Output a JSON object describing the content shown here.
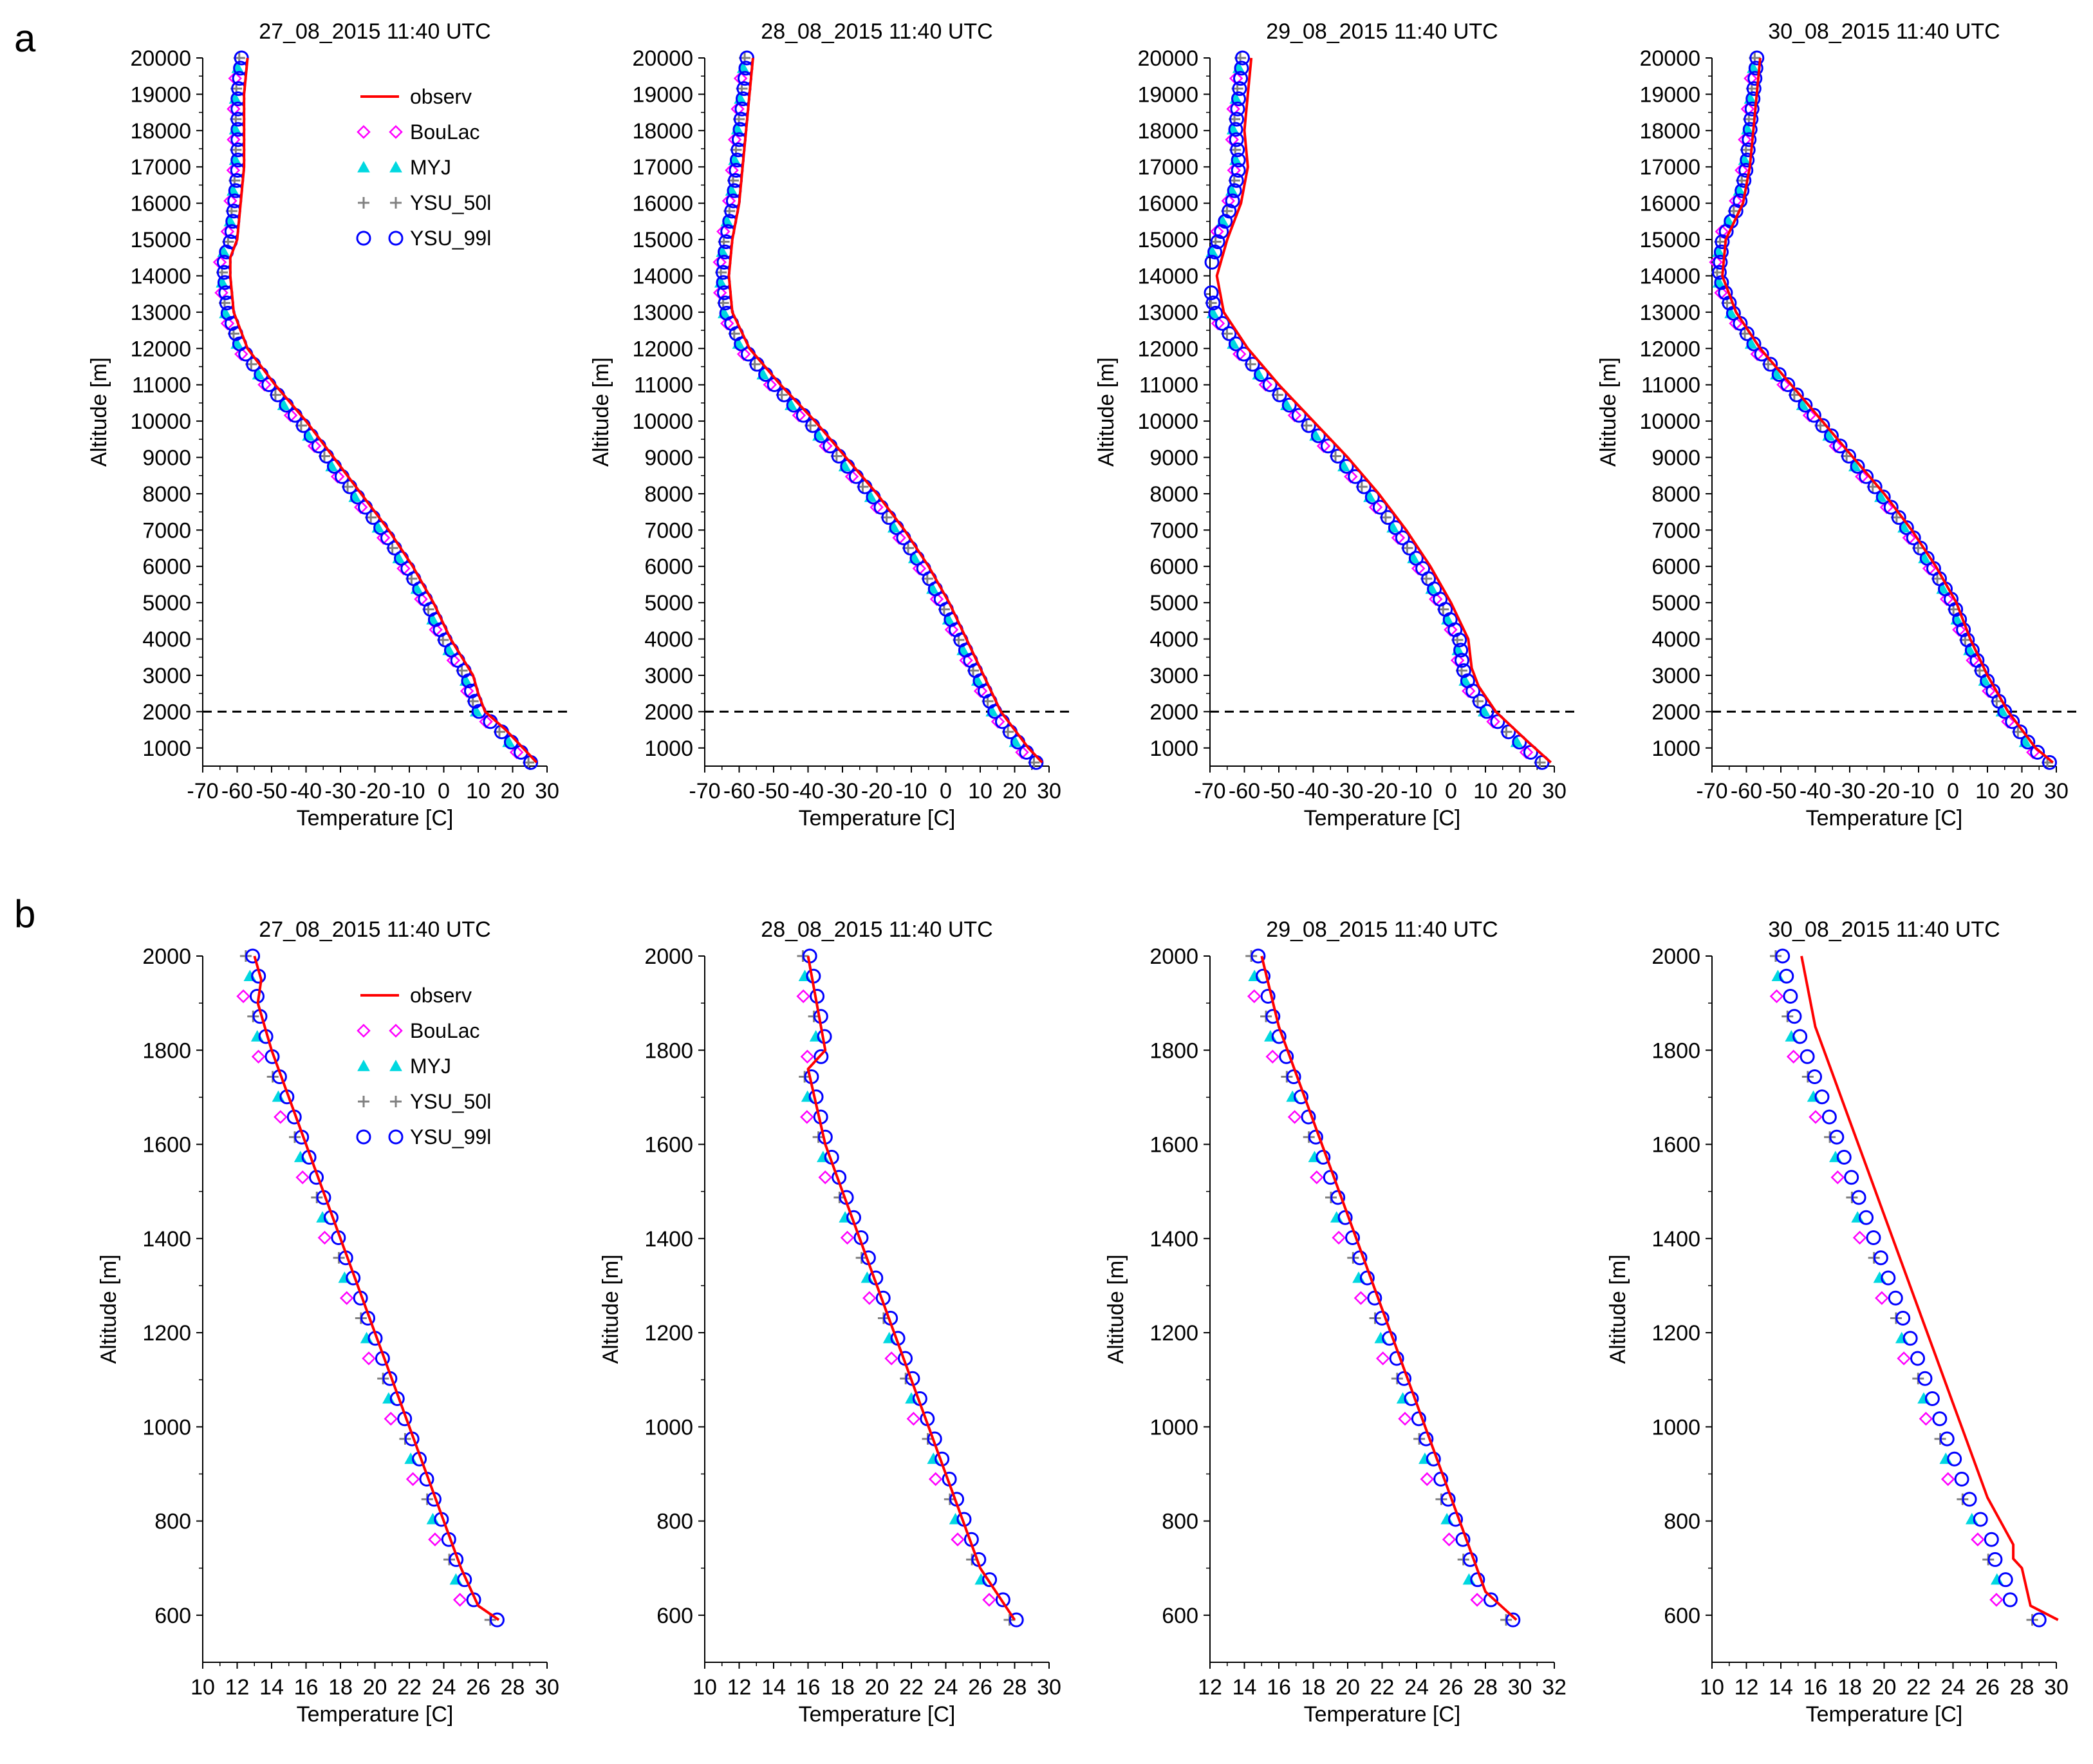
{
  "panel_labels": [
    "a",
    "b"
  ],
  "legend": {
    "entries": [
      {
        "key": "observ",
        "label": "observ",
        "color": "#ff0000",
        "marker": "line"
      },
      {
        "key": "BouLac",
        "label": "BouLac",
        "color": "#ff00ff",
        "marker": "diamond"
      },
      {
        "key": "MYJ",
        "label": "MYJ",
        "color": "#00d8e0",
        "marker": "triangle"
      },
      {
        "key": "YSU_50l",
        "label": "YSU_50l",
        "color": "#808080",
        "marker": "plus"
      },
      {
        "key": "YSU_99l",
        "label": "YSU_99l",
        "color": "#0000ff",
        "marker": "circle"
      }
    ]
  },
  "chart_data": [
    {
      "id": "a1",
      "row": "a",
      "type": "line",
      "title": "27_08_2015 11:40 UTC",
      "xlabel": "Temperature [C]",
      "ylabel": "Altitude [m]",
      "xlim": [
        -70,
        30
      ],
      "ylim": [
        500,
        20000
      ],
      "xticks": [
        -70,
        -60,
        -50,
        -40,
        -30,
        -20,
        -10,
        0,
        10,
        20,
        30
      ],
      "yticks": [
        1000,
        2000,
        3000,
        4000,
        5000,
        6000,
        7000,
        8000,
        9000,
        10000,
        11000,
        12000,
        13000,
        14000,
        15000,
        16000,
        17000,
        18000,
        19000,
        20000
      ],
      "hline": 2000,
      "legend": true,
      "observ": [
        [
          27,
          600
        ],
        [
          24,
          900
        ],
        [
          18,
          1500
        ],
        [
          12,
          2000
        ],
        [
          10,
          2500
        ],
        [
          8.5,
          3000
        ],
        [
          2,
          4000
        ],
        [
          -3,
          5000
        ],
        [
          -9,
          6000
        ],
        [
          -16,
          7000
        ],
        [
          -24,
          8000
        ],
        [
          -32,
          9000
        ],
        [
          -40,
          10000
        ],
        [
          -49,
          11000
        ],
        [
          -57,
          12000
        ],
        [
          -61,
          13000
        ],
        [
          -62,
          14000
        ],
        [
          -62,
          14500
        ],
        [
          -60,
          15000
        ],
        [
          -59,
          16000
        ],
        [
          -58,
          17000
        ],
        [
          -58,
          18000
        ],
        [
          -58,
          19000
        ],
        [
          -57,
          20000
        ]
      ],
      "model_offset": -1.5
    },
    {
      "id": "a2",
      "row": "a",
      "type": "line",
      "title": "28_08_2015 11:40 UTC",
      "xlabel": "Temperature [C]",
      "ylabel": "Altitude [m]",
      "xlim": [
        -70,
        30
      ],
      "ylim": [
        500,
        20000
      ],
      "xticks": [
        -70,
        -60,
        -50,
        -40,
        -30,
        -20,
        -10,
        0,
        10,
        20,
        30
      ],
      "yticks": [
        1000,
        2000,
        3000,
        4000,
        5000,
        6000,
        7000,
        8000,
        9000,
        10000,
        11000,
        12000,
        13000,
        14000,
        15000,
        16000,
        17000,
        18000,
        19000,
        20000
      ],
      "hline": 2000,
      "legend": false,
      "observ": [
        [
          28,
          600
        ],
        [
          24,
          1000
        ],
        [
          16,
          2000
        ],
        [
          11,
          3000
        ],
        [
          6,
          4000
        ],
        [
          1,
          5000
        ],
        [
          -5,
          6000
        ],
        [
          -12,
          7000
        ],
        [
          -20,
          8000
        ],
        [
          -29,
          9000
        ],
        [
          -38,
          10000
        ],
        [
          -48,
          11000
        ],
        [
          -57,
          12000
        ],
        [
          -62,
          13000
        ],
        [
          -63,
          14000
        ],
        [
          -62,
          15000
        ],
        [
          -60,
          16000
        ],
        [
          -59,
          17000
        ],
        [
          -58,
          18000
        ],
        [
          -57,
          19000
        ],
        [
          -56,
          20000
        ]
      ],
      "model_offset": -1.5
    },
    {
      "id": "a3",
      "row": "a",
      "type": "line",
      "title": "29_08_2015 11:40 UTC",
      "xlabel": "Temperature [C]",
      "ylabel": "Altitude [m]",
      "xlim": [
        -70,
        30
      ],
      "ylim": [
        500,
        20000
      ],
      "xticks": [
        -70,
        -60,
        -50,
        -40,
        -30,
        -20,
        -10,
        0,
        10,
        20,
        30
      ],
      "yticks": [
        1000,
        2000,
        3000,
        4000,
        5000,
        6000,
        7000,
        8000,
        9000,
        10000,
        11000,
        12000,
        13000,
        14000,
        15000,
        16000,
        17000,
        18000,
        19000,
        20000
      ],
      "hline": 2000,
      "legend": false,
      "observ": [
        [
          29,
          600
        ],
        [
          22,
          1200
        ],
        [
          13,
          2000
        ],
        [
          8,
          2700
        ],
        [
          6,
          3200
        ],
        [
          5,
          4000
        ],
        [
          0,
          5000
        ],
        [
          -6,
          6000
        ],
        [
          -13,
          7000
        ],
        [
          -21,
          8000
        ],
        [
          -30,
          9000
        ],
        [
          -40,
          10000
        ],
        [
          -50,
          11000
        ],
        [
          -59,
          12000
        ],
        [
          -66,
          13000
        ],
        [
          -68,
          14000
        ],
        [
          -65,
          15000
        ],
        [
          -61,
          16000
        ],
        [
          -59,
          17000
        ],
        [
          -60,
          18000
        ],
        [
          -59,
          19000
        ],
        [
          -58,
          20000
        ]
      ],
      "model_offset": -2
    },
    {
      "id": "a4",
      "row": "a",
      "type": "line",
      "title": "30_08_2015 11:40 UTC",
      "xlabel": "Temperature [C]",
      "ylabel": "Altitude [m]",
      "xlim": [
        -70,
        30
      ],
      "ylim": [
        500,
        20000
      ],
      "xticks": [
        -70,
        -60,
        -50,
        -40,
        -30,
        -20,
        -10,
        0,
        10,
        20,
        30
      ],
      "yticks": [
        1000,
        2000,
        3000,
        4000,
        5000,
        6000,
        7000,
        8000,
        9000,
        10000,
        11000,
        12000,
        13000,
        14000,
        15000,
        16000,
        17000,
        18000,
        19000,
        20000
      ],
      "hline": 2000,
      "legend": false,
      "observ": [
        [
          29,
          600
        ],
        [
          24,
          1000
        ],
        [
          16,
          2000
        ],
        [
          10,
          3000
        ],
        [
          5,
          4000
        ],
        [
          1,
          5000
        ],
        [
          -5,
          6000
        ],
        [
          -12,
          7000
        ],
        [
          -20,
          8000
        ],
        [
          -29,
          9000
        ],
        [
          -38,
          10000
        ],
        [
          -47,
          11000
        ],
        [
          -56,
          12000
        ],
        [
          -63,
          13000
        ],
        [
          -67,
          14000
        ],
        [
          -66,
          15000
        ],
        [
          -61,
          16000
        ],
        [
          -59,
          17000
        ],
        [
          -58,
          18000
        ],
        [
          -57,
          19000
        ],
        [
          -56,
          20000
        ]
      ],
      "model_offset": -1
    },
    {
      "id": "b1",
      "row": "b",
      "type": "line",
      "title": "27_08_2015 11:40 UTC",
      "xlabel": "Temperature [C]",
      "ylabel": "Altitude [m]",
      "xlim": [
        10,
        30
      ],
      "ylim": [
        500,
        2000
      ],
      "xticks": [
        10,
        12,
        14,
        16,
        18,
        20,
        22,
        24,
        26,
        28,
        30
      ],
      "yticks": [
        600,
        800,
        1000,
        1200,
        1400,
        1600,
        1800,
        2000
      ],
      "legend": true,
      "observ": [
        [
          27.2,
          590
        ],
        [
          26,
          620
        ],
        [
          25,
          700
        ],
        [
          24,
          800
        ],
        [
          23,
          900
        ],
        [
          22,
          1000
        ],
        [
          21,
          1100
        ],
        [
          20,
          1200
        ],
        [
          19,
          1300
        ],
        [
          18,
          1400
        ],
        [
          17,
          1500
        ],
        [
          16,
          1600
        ],
        [
          15,
          1700
        ],
        [
          14,
          1800
        ],
        [
          13.2,
          1900
        ],
        [
          13.4,
          1950
        ],
        [
          13,
          2000
        ]
      ],
      "model_offset": -0.5
    },
    {
      "id": "b2",
      "row": "b",
      "type": "line",
      "title": "28_08_2015 11:40 UTC",
      "xlabel": "Temperature [C]",
      "ylabel": "Altitude [m]",
      "xlim": [
        10,
        30
      ],
      "ylim": [
        500,
        2000
      ],
      "xticks": [
        10,
        12,
        14,
        16,
        18,
        20,
        22,
        24,
        26,
        28,
        30
      ],
      "yticks": [
        600,
        800,
        1000,
        1200,
        1400,
        1600,
        1800,
        2000
      ],
      "legend": false,
      "observ": [
        [
          28,
          590
        ],
        [
          26,
          700
        ],
        [
          25,
          800
        ],
        [
          24,
          900
        ],
        [
          23,
          1000
        ],
        [
          22,
          1100
        ],
        [
          21,
          1200
        ],
        [
          20,
          1300
        ],
        [
          19,
          1400
        ],
        [
          18,
          1500
        ],
        [
          17,
          1600
        ],
        [
          16,
          1760
        ],
        [
          17,
          1800
        ],
        [
          16.5,
          1900
        ],
        [
          16,
          2000
        ]
      ],
      "model_offset": -0.3
    },
    {
      "id": "b3",
      "row": "b",
      "type": "line",
      "title": "29_08_2015 11:40 UTC",
      "xlabel": "Temperature [C]",
      "ylabel": "Altitude [m]",
      "xlim": [
        12,
        32
      ],
      "ylim": [
        500,
        2000
      ],
      "xticks": [
        12,
        14,
        16,
        18,
        20,
        22,
        24,
        26,
        28,
        30,
        32
      ],
      "yticks": [
        600,
        800,
        1000,
        1200,
        1400,
        1600,
        1800,
        2000
      ],
      "legend": false,
      "observ": [
        [
          29.8,
          590
        ],
        [
          28,
          650
        ],
        [
          27,
          750
        ],
        [
          26,
          850
        ],
        [
          25,
          950
        ],
        [
          24,
          1050
        ],
        [
          23,
          1150
        ],
        [
          22,
          1250
        ],
        [
          21,
          1350
        ],
        [
          20,
          1450
        ],
        [
          19,
          1550
        ],
        [
          18,
          1650
        ],
        [
          17,
          1750
        ],
        [
          16,
          1850
        ],
        [
          15,
          2000
        ]
      ],
      "model_offset": -0.6
    },
    {
      "id": "b4",
      "row": "b",
      "type": "line",
      "title": "30_08_2015 11:40 UTC",
      "xlabel": "Temperature [C]",
      "ylabel": "Altitude [m]",
      "xlim": [
        10,
        30
      ],
      "ylim": [
        500,
        2000
      ],
      "xticks": [
        10,
        12,
        14,
        16,
        18,
        20,
        22,
        24,
        26,
        28,
        30
      ],
      "yticks": [
        600,
        800,
        1000,
        1200,
        1400,
        1600,
        1800,
        2000
      ],
      "legend": false,
      "observ": [
        [
          30.1,
          590
        ],
        [
          28.5,
          620
        ],
        [
          28,
          700
        ],
        [
          27.5,
          720
        ],
        [
          27.5,
          750
        ],
        [
          26,
          850
        ],
        [
          25,
          950
        ],
        [
          24,
          1050
        ],
        [
          23,
          1150
        ],
        [
          22,
          1250
        ],
        [
          21,
          1350
        ],
        [
          20,
          1450
        ],
        [
          19,
          1550
        ],
        [
          18,
          1650
        ],
        [
          17,
          1750
        ],
        [
          16,
          1850
        ],
        [
          15.2,
          2000
        ]
      ],
      "model_offset": -1.5
    }
  ]
}
